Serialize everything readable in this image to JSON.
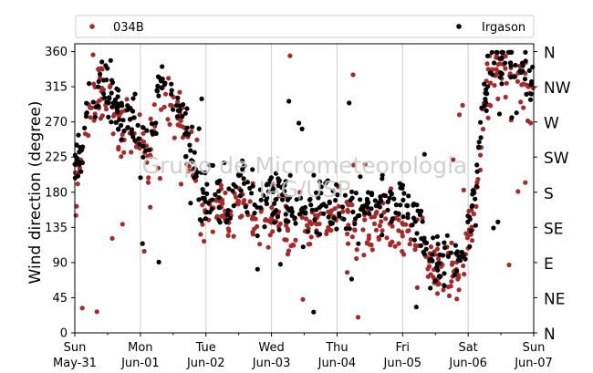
{
  "chart_data": {
    "type": "scatter",
    "title": "",
    "ylabel": "Wind direction (degree)",
    "ylim": [
      0,
      370
    ],
    "yticks": [
      0,
      45,
      90,
      135,
      180,
      225,
      270,
      315,
      360
    ],
    "xlim": [
      "2020-05-31",
      "2020-06-07"
    ],
    "x_unit": "day",
    "xticks": [
      {
        "day": "Sun",
        "date": "May-31"
      },
      {
        "day": "Mon",
        "date": "Jun-01"
      },
      {
        "day": "Tue",
        "date": "Jun-02"
      },
      {
        "day": "Wed",
        "date": "Jun-03"
      },
      {
        "day": "Thu",
        "date": "Jun-04"
      },
      {
        "day": "Fri",
        "date": "Jun-05"
      },
      {
        "day": "Sat",
        "date": "Jun-06"
      },
      {
        "day": "Sun",
        "date": "Jun-07"
      }
    ],
    "compass_labels": [
      {
        "label": "N",
        "value": 0
      },
      {
        "label": "NE",
        "value": 45
      },
      {
        "label": "E",
        "value": 90
      },
      {
        "label": "SE",
        "value": 135
      },
      {
        "label": "S",
        "value": 180
      },
      {
        "label": "SW",
        "value": 225
      },
      {
        "label": "W",
        "value": 270
      },
      {
        "label": "NW",
        "value": 315
      },
      {
        "label": "N",
        "value": 360
      }
    ],
    "grid": "vertical",
    "legend_position": "top",
    "watermark": [
      "Grupo de Micrometeorologia",
      "IAG/USP"
    ],
    "series": [
      {
        "name": "034B",
        "color": "#a52a2a",
        "trend": [
          [
            0.0,
            200
          ],
          [
            0.1,
            230
          ],
          [
            0.25,
            290
          ],
          [
            0.4,
            310
          ],
          [
            0.55,
            300
          ],
          [
            0.7,
            250
          ],
          [
            0.85,
            270
          ],
          [
            1.0,
            245
          ],
          [
            1.15,
            230
          ],
          [
            1.3,
            320
          ],
          [
            1.45,
            300
          ],
          [
            1.6,
            280
          ],
          [
            1.75,
            240
          ],
          [
            1.9,
            160
          ],
          [
            2.05,
            150
          ],
          [
            2.2,
            160
          ],
          [
            2.35,
            140
          ],
          [
            2.5,
            175
          ],
          [
            2.65,
            150
          ],
          [
            2.8,
            130
          ],
          [
            2.95,
            140
          ],
          [
            3.1,
            160
          ],
          [
            3.25,
            140
          ],
          [
            3.4,
            120
          ],
          [
            3.55,
            140
          ],
          [
            3.7,
            145
          ],
          [
            3.85,
            140
          ],
          [
            4.0,
            150
          ],
          [
            4.15,
            145
          ],
          [
            4.3,
            130
          ],
          [
            4.45,
            140
          ],
          [
            4.6,
            135
          ],
          [
            4.75,
            150
          ],
          [
            4.9,
            130
          ],
          [
            5.05,
            140
          ],
          [
            5.2,
            120
          ],
          [
            5.35,
            100
          ],
          [
            5.5,
            75
          ],
          [
            5.65,
            70
          ],
          [
            5.8,
            80
          ],
          [
            5.95,
            90
          ],
          [
            6.1,
            160
          ],
          [
            6.25,
            300
          ],
          [
            6.4,
            340
          ],
          [
            6.55,
            330
          ],
          [
            6.7,
            340
          ],
          [
            6.85,
            320
          ],
          [
            7.0,
            300
          ]
        ]
      },
      {
        "name": "Irgason",
        "color": "#000000",
        "trend": [
          [
            0.0,
            215
          ],
          [
            0.1,
            240
          ],
          [
            0.25,
            300
          ],
          [
            0.4,
            320
          ],
          [
            0.55,
            310
          ],
          [
            0.7,
            260
          ],
          [
            0.85,
            280
          ],
          [
            1.0,
            250
          ],
          [
            1.15,
            245
          ],
          [
            1.3,
            330
          ],
          [
            1.45,
            315
          ],
          [
            1.6,
            290
          ],
          [
            1.75,
            250
          ],
          [
            1.9,
            180
          ],
          [
            2.05,
            175
          ],
          [
            2.2,
            180
          ],
          [
            2.35,
            165
          ],
          [
            2.5,
            200
          ],
          [
            2.65,
            175
          ],
          [
            2.8,
            160
          ],
          [
            2.95,
            165
          ],
          [
            3.1,
            185
          ],
          [
            3.25,
            165
          ],
          [
            3.4,
            150
          ],
          [
            3.55,
            160
          ],
          [
            3.7,
            165
          ],
          [
            3.85,
            160
          ],
          [
            4.0,
            170
          ],
          [
            4.15,
            165
          ],
          [
            4.3,
            150
          ],
          [
            4.45,
            160
          ],
          [
            4.6,
            165
          ],
          [
            4.75,
            175
          ],
          [
            4.9,
            160
          ],
          [
            5.05,
            165
          ],
          [
            5.2,
            140
          ],
          [
            5.35,
            110
          ],
          [
            5.5,
            85
          ],
          [
            5.65,
            80
          ],
          [
            5.8,
            90
          ],
          [
            5.95,
            100
          ],
          [
            6.1,
            180
          ],
          [
            6.25,
            310
          ],
          [
            6.4,
            350
          ],
          [
            6.55,
            345
          ],
          [
            6.7,
            350
          ],
          [
            6.85,
            335
          ],
          [
            7.0,
            310
          ]
        ]
      }
    ]
  }
}
